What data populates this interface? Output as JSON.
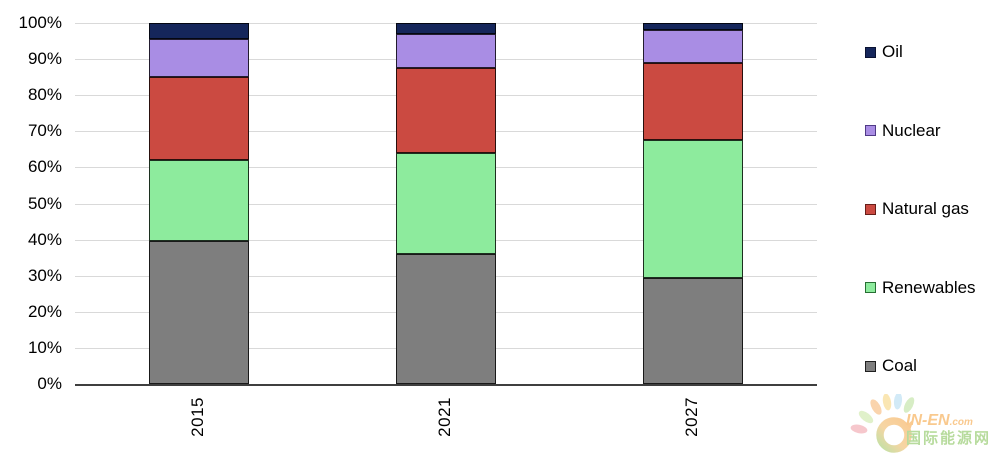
{
  "chart_data": {
    "type": "bar",
    "stacked": true,
    "title": "",
    "unit": "%",
    "categories": [
      "2015",
      "2021",
      "2027"
    ],
    "series": [
      {
        "name": "Oil",
        "color": "#15265b",
        "border": "#0a1232",
        "values": [
          4.5,
          3,
          2
        ]
      },
      {
        "name": "Nuclear",
        "color": "#a98de4",
        "border": "#4f3a86",
        "values": [
          10.5,
          9.5,
          9
        ]
      },
      {
        "name": "Natural gas",
        "color": "#cb4a41",
        "border": "#671e19",
        "values": [
          23,
          23.5,
          21.5
        ]
      },
      {
        "name": "Renewables",
        "color": "#8deb9d",
        "border": "#276e33",
        "values": [
          22.5,
          28,
          38
        ]
      },
      {
        "name": "Coal",
        "color": "#7e7e7e",
        "border": "#1f1f1f",
        "values": [
          39.5,
          36,
          29.5
        ]
      }
    ],
    "stack_order_bottom_to_top": [
      "Coal",
      "Renewables",
      "Natural gas",
      "Nuclear",
      "Oil"
    ],
    "ylim": [
      0,
      100
    ],
    "y_ticks": [
      {
        "value": 0,
        "label": "0%"
      },
      {
        "value": 10,
        "label": "10%"
      },
      {
        "value": 20,
        "label": "20%"
      },
      {
        "value": 30,
        "label": "30%"
      },
      {
        "value": 40,
        "label": "40%"
      },
      {
        "value": 50,
        "label": "50%"
      },
      {
        "value": 60,
        "label": "60%"
      },
      {
        "value": 70,
        "label": "70%"
      },
      {
        "value": 80,
        "label": "80%"
      },
      {
        "value": 90,
        "label": "90%"
      },
      {
        "value": 100,
        "label": "100%"
      }
    ],
    "grid": true,
    "legend_position": "right",
    "gridline_color": "#d9d9d9",
    "axis_color": "#3f3f3f"
  },
  "watermark": {
    "brand": "IN-EN",
    "domain_suffix": ".com",
    "caption_cn": "国际能源网"
  }
}
